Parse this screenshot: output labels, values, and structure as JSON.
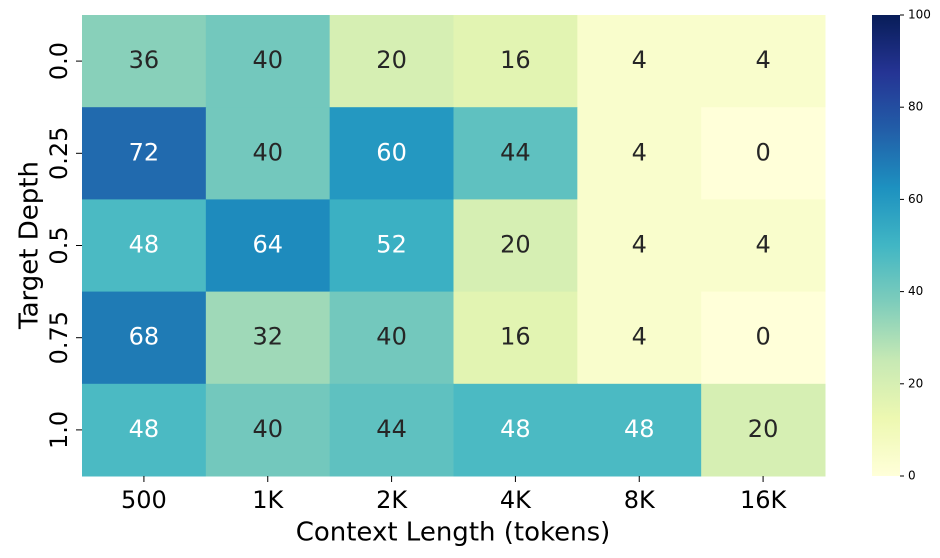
{
  "chart_data": {
    "type": "heatmap",
    "x_label": "Context Length (tokens)",
    "y_label": "Target Depth",
    "categories": [
      "500",
      "1K",
      "2K",
      "4K",
      "8K",
      "16K"
    ],
    "y_categories": [
      "0.0",
      "0.25",
      "0.5",
      "0.75",
      "1.0"
    ],
    "values": [
      [
        36,
        40,
        20,
        16,
        4,
        4
      ],
      [
        72,
        40,
        60,
        44,
        4,
        0
      ],
      [
        48,
        64,
        52,
        20,
        4,
        4
      ],
      [
        68,
        32,
        40,
        16,
        4,
        0
      ],
      [
        48,
        40,
        44,
        48,
        48,
        20
      ]
    ],
    "colormap": "YlGnBu",
    "zlim": [
      0,
      100
    ],
    "zticks": [
      0,
      20,
      40,
      60,
      80,
      100
    ]
  }
}
